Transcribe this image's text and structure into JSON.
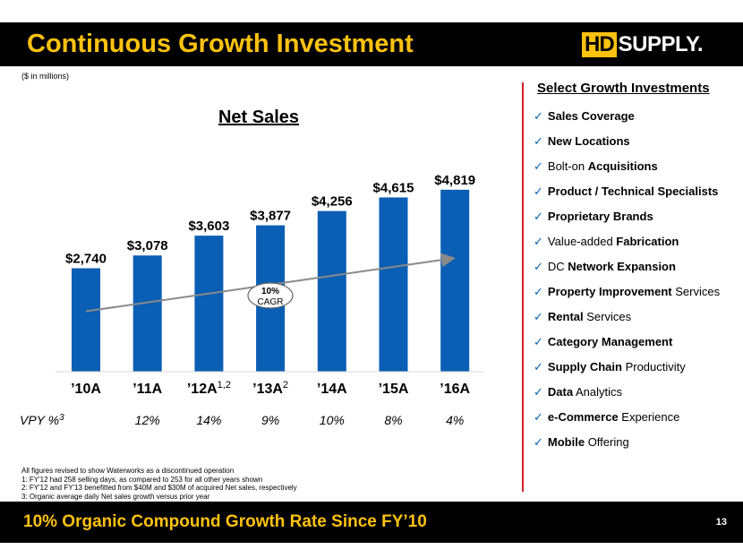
{
  "header": {
    "title": "Continuous Growth Investment",
    "logo_text": "HDSUPPLY.",
    "logo_hd": "HD",
    "logo_rest": "SUPPLY."
  },
  "units_note": "($ in millions)",
  "colors": {
    "bar": "#0a5eb3",
    "accent": "#fdc20f",
    "rule": "#d21f26",
    "check": "#0060b0"
  },
  "chart_data": {
    "type": "bar",
    "title": "Net Sales",
    "categories": [
      "’10A",
      "’11A",
      "’12A",
      "’13A",
      "’14A",
      "’15A",
      "’16A"
    ],
    "category_superscripts": [
      "",
      "",
      "1,2",
      "2",
      "",
      "",
      ""
    ],
    "values": [
      2740,
      3078,
      3603,
      3877,
      4256,
      4615,
      4819
    ],
    "value_labels": [
      "$2,740",
      "$3,078",
      "$3,603",
      "$3,877",
      "$4,256",
      "$4,615",
      "$4,819"
    ],
    "ylim": [
      0,
      5100
    ],
    "vpy_label": "VPY %",
    "vpy_superscript": "3",
    "vpy": [
      "",
      "12%",
      "14%",
      "9%",
      "10%",
      "8%",
      "4%"
    ],
    "trend": {
      "label_line1": "10%",
      "label_line2": "CAGR",
      "from_value": 1600,
      "to_value": 3000
    }
  },
  "investments": {
    "title": "Select Growth Investments",
    "items": [
      {
        "bold": "Sales Coverage",
        "rest": "",
        "bold_first": true
      },
      {
        "bold": "New Locations",
        "rest": "",
        "bold_first": true
      },
      {
        "bold": "Acquisitions",
        "rest": "Bolt-on ",
        "bold_first": false
      },
      {
        "bold": "Product / Technical Specialists",
        "rest": "",
        "bold_first": true
      },
      {
        "bold": "Proprietary Brands",
        "rest": "",
        "bold_first": true
      },
      {
        "bold": "Fabrication",
        "rest": "Value-added ",
        "bold_first": false
      },
      {
        "bold": "Network Expansion",
        "rest": "DC ",
        "bold_first": false
      },
      {
        "bold": "Property Improvement",
        "rest": " Services",
        "bold_first": true
      },
      {
        "bold": "Rental",
        "rest": " Services",
        "bold_first": true
      },
      {
        "bold": "Category Management",
        "rest": "",
        "bold_first": true
      },
      {
        "bold": "Supply Chain",
        "rest": " Productivity",
        "bold_first": true
      },
      {
        "bold": "Data",
        "rest": " Analytics",
        "bold_first": true
      },
      {
        "bold": "e-Commerce",
        "rest": " Experience",
        "bold_first": true
      },
      {
        "bold": "Mobile",
        "rest": " Offering",
        "bold_first": true
      }
    ]
  },
  "notes": [
    "All figures revised to show Waterworks as a discontinued operation",
    "1:   FY'12 had 258 selling days, as compared to 253 for all other years shown",
    "2:   FY'12 and FY'13 benefitted from $40M and $30M of acquired Net sales, respectively",
    "3:   Organic average daily Net sales growth versus prior year"
  ],
  "footer": {
    "text": "10% Organic Compound Growth Rate Since FY’10",
    "page": "13"
  }
}
